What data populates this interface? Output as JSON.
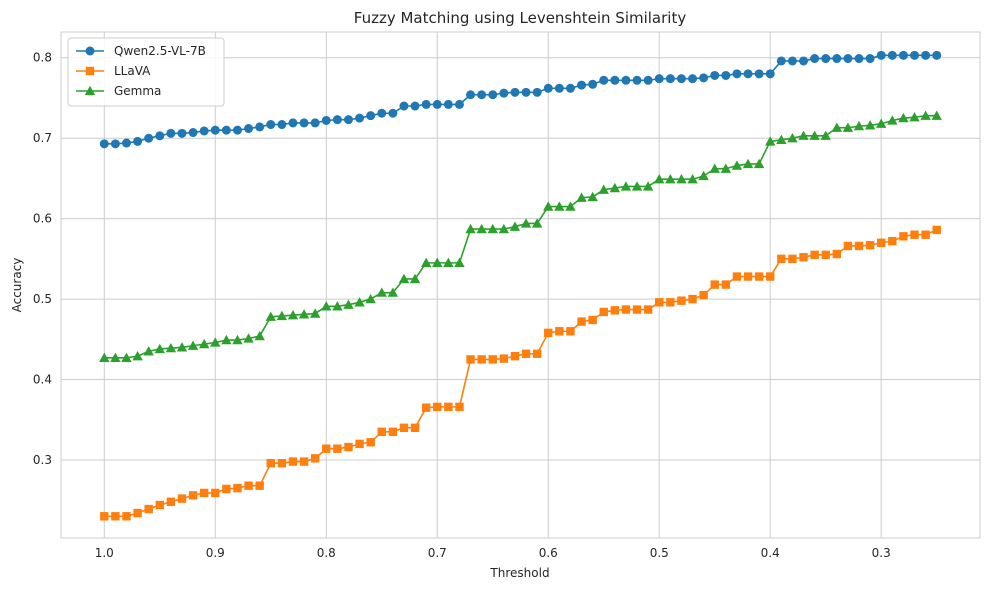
{
  "chart_data": {
    "type": "line",
    "title": "Fuzzy Matching using Levenshtein Similarity",
    "xlabel": "Threshold",
    "ylabel": "Accuracy",
    "x_reversed": true,
    "xlim": [
      1.039,
      0.211
    ],
    "ylim": [
      0.203,
      0.832
    ],
    "xticks": [
      1.0,
      0.9,
      0.8,
      0.7,
      0.6,
      0.5,
      0.4,
      0.3
    ],
    "xtick_labels": [
      "1.0",
      "0.9",
      "0.8",
      "0.7",
      "0.6",
      "0.5",
      "0.4",
      "0.3"
    ],
    "yticks": [
      0.3,
      0.4,
      0.5,
      0.6,
      0.7,
      0.8
    ],
    "ytick_labels": [
      "0.3",
      "0.4",
      "0.5",
      "0.6",
      "0.7",
      "0.8"
    ],
    "grid": true,
    "legend_position": "top-left",
    "x": [
      1.0,
      0.99,
      0.98,
      0.97,
      0.96,
      0.95,
      0.94,
      0.93,
      0.92,
      0.91,
      0.9,
      0.89,
      0.88,
      0.87,
      0.86,
      0.85,
      0.84,
      0.83,
      0.82,
      0.81,
      0.8,
      0.79,
      0.78,
      0.77,
      0.76,
      0.75,
      0.74,
      0.73,
      0.72,
      0.71,
      0.7,
      0.69,
      0.68,
      0.67,
      0.66,
      0.65,
      0.64,
      0.63,
      0.62,
      0.61,
      0.6,
      0.59,
      0.58,
      0.57,
      0.56,
      0.55,
      0.54,
      0.53,
      0.52,
      0.51,
      0.5,
      0.49,
      0.48,
      0.47,
      0.46,
      0.45,
      0.44,
      0.43,
      0.42,
      0.41,
      0.4,
      0.39,
      0.38,
      0.37,
      0.36,
      0.35,
      0.34,
      0.33,
      0.32,
      0.31,
      0.3,
      0.29,
      0.28,
      0.27,
      0.26,
      0.25
    ],
    "series": [
      {
        "name": "Qwen2.5-VL-7B",
        "color": "#1f77b4",
        "marker": "circle",
        "values": [
          0.693,
          0.693,
          0.694,
          0.696,
          0.7,
          0.703,
          0.706,
          0.706,
          0.707,
          0.709,
          0.71,
          0.71,
          0.71,
          0.712,
          0.714,
          0.717,
          0.717,
          0.719,
          0.719,
          0.719,
          0.722,
          0.723,
          0.723,
          0.725,
          0.728,
          0.731,
          0.731,
          0.74,
          0.74,
          0.742,
          0.742,
          0.742,
          0.742,
          0.754,
          0.754,
          0.754,
          0.756,
          0.757,
          0.757,
          0.757,
          0.762,
          0.762,
          0.762,
          0.766,
          0.767,
          0.772,
          0.772,
          0.772,
          0.772,
          0.772,
          0.774,
          0.774,
          0.774,
          0.774,
          0.775,
          0.778,
          0.778,
          0.78,
          0.78,
          0.78,
          0.78,
          0.796,
          0.796,
          0.796,
          0.799,
          0.799,
          0.799,
          0.799,
          0.799,
          0.799,
          0.803,
          0.803,
          0.803,
          0.803,
          0.803,
          0.803
        ]
      },
      {
        "name": "LLaVA",
        "color": "#ff7f0e",
        "marker": "square",
        "values": [
          0.23,
          0.23,
          0.23,
          0.234,
          0.239,
          0.244,
          0.248,
          0.252,
          0.256,
          0.259,
          0.259,
          0.264,
          0.265,
          0.268,
          0.268,
          0.296,
          0.296,
          0.298,
          0.298,
          0.302,
          0.314,
          0.314,
          0.316,
          0.32,
          0.322,
          0.335,
          0.335,
          0.34,
          0.34,
          0.365,
          0.366,
          0.366,
          0.366,
          0.425,
          0.425,
          0.425,
          0.426,
          0.429,
          0.432,
          0.432,
          0.458,
          0.46,
          0.46,
          0.472,
          0.474,
          0.484,
          0.486,
          0.487,
          0.487,
          0.487,
          0.496,
          0.496,
          0.498,
          0.5,
          0.505,
          0.518,
          0.518,
          0.528,
          0.528,
          0.528,
          0.528,
          0.55,
          0.55,
          0.552,
          0.555,
          0.555,
          0.556,
          0.566,
          0.566,
          0.567,
          0.57,
          0.572,
          0.578,
          0.58,
          0.58,
          0.586
        ]
      },
      {
        "name": "Gemma",
        "color": "#2ca02c",
        "marker": "triangle",
        "values": [
          0.427,
          0.427,
          0.427,
          0.429,
          0.435,
          0.438,
          0.439,
          0.44,
          0.442,
          0.444,
          0.446,
          0.449,
          0.449,
          0.451,
          0.454,
          0.478,
          0.479,
          0.48,
          0.481,
          0.482,
          0.491,
          0.491,
          0.493,
          0.496,
          0.5,
          0.508,
          0.508,
          0.525,
          0.525,
          0.545,
          0.545,
          0.545,
          0.545,
          0.587,
          0.587,
          0.587,
          0.587,
          0.59,
          0.594,
          0.594,
          0.615,
          0.615,
          0.615,
          0.626,
          0.627,
          0.636,
          0.638,
          0.64,
          0.64,
          0.64,
          0.649,
          0.649,
          0.649,
          0.649,
          0.653,
          0.662,
          0.662,
          0.666,
          0.668,
          0.668,
          0.696,
          0.698,
          0.7,
          0.703,
          0.703,
          0.703,
          0.713,
          0.713,
          0.715,
          0.716,
          0.718,
          0.722,
          0.725,
          0.726,
          0.728,
          0.728
        ]
      }
    ]
  }
}
